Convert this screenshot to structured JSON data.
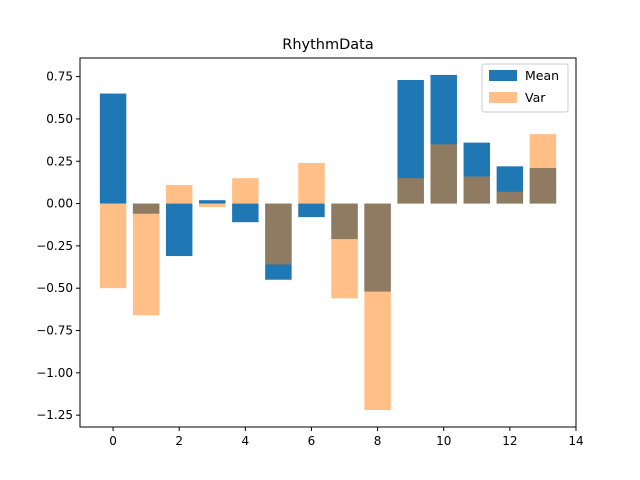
{
  "chart_data": {
    "type": "bar",
    "title": "RhythmData",
    "xlabel": "",
    "ylabel": "",
    "x": [
      0,
      1,
      2,
      3,
      4,
      5,
      6,
      7,
      8,
      9,
      10,
      11,
      12,
      13
    ],
    "series": [
      {
        "name": "Mean",
        "color": "#1f77b4",
        "alpha": 1.0,
        "values": [
          0.65,
          -0.06,
          -0.31,
          0.02,
          -0.11,
          -0.45,
          -0.08,
          -0.21,
          -0.52,
          0.73,
          0.76,
          0.36,
          0.22,
          0.21
        ]
      },
      {
        "name": "Var",
        "color": "#ff7f0e",
        "alpha": 0.5,
        "values": [
          -0.5,
          -0.66,
          0.11,
          -0.02,
          0.15,
          -0.36,
          0.24,
          -0.56,
          -1.22,
          0.15,
          0.35,
          0.16,
          0.07,
          0.41
        ]
      }
    ],
    "xlim": [
      -1.0,
      14.0
    ],
    "ylim": [
      -1.32,
      0.86
    ],
    "xticks": [
      0,
      2,
      4,
      6,
      8,
      10,
      12,
      14
    ],
    "yticks": [
      -1.25,
      -1.0,
      -0.75,
      -0.5,
      -0.25,
      0.0,
      0.25,
      0.5,
      0.75
    ],
    "ytick_labels": [
      "−1.25",
      "−1.00",
      "−0.75",
      "−0.50",
      "−0.25",
      "0.00",
      "0.25",
      "0.50",
      "0.75"
    ],
    "legend_position": "top-right",
    "grid": false
  }
}
